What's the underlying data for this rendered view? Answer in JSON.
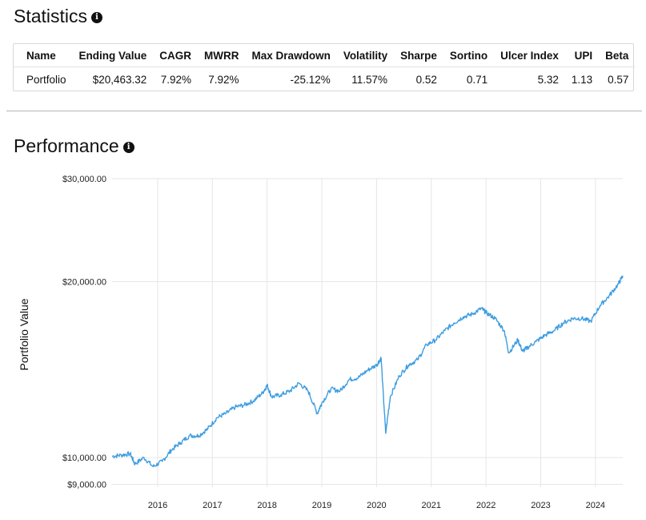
{
  "statistics": {
    "title": "Statistics",
    "info_icon": "info-circle-icon",
    "columns": [
      "Name",
      "Ending Value",
      "CAGR",
      "MWRR",
      "Max Drawdown",
      "Volatility",
      "Sharpe",
      "Sortino",
      "Ulcer Index",
      "UPI",
      "Beta"
    ],
    "rows": [
      [
        "Portfolio",
        "$20,463.32",
        "7.92%",
        "7.92%",
        "-25.12%",
        "11.57%",
        "0.52",
        "0.71",
        "5.32",
        "1.13",
        "0.57"
      ]
    ]
  },
  "performance": {
    "title": "Performance",
    "info_icon": "info-circle-icon"
  },
  "chart_data": {
    "type": "line",
    "title": "",
    "xlabel": "",
    "ylabel": "Portfolio Value",
    "y_scale": "log",
    "ylim": [
      8900,
      30000
    ],
    "y_ticks": [
      9000,
      10000,
      20000,
      30000
    ],
    "y_tick_labels": [
      "$9,000.00",
      "$10,000.00",
      "$20,000.00",
      "$30,000.00"
    ],
    "x_ticks": [
      "2016",
      "2017",
      "2018",
      "2019",
      "2020",
      "2021",
      "2022",
      "2023",
      "2024"
    ],
    "xlim": [
      "2015-03",
      "2024-07"
    ],
    "grid": true,
    "line_color": "#3d9de0",
    "series": [
      {
        "x": [
          "2015-03",
          "2015-05",
          "2015-07",
          "2015-08",
          "2015-10",
          "2015-12",
          "2016-02",
          "2016-04",
          "2016-06",
          "2016-08",
          "2016-10",
          "2016-12",
          "2017-02",
          "2017-04",
          "2017-06",
          "2017-08",
          "2017-10",
          "2017-12",
          "2018-01",
          "2018-02",
          "2018-04",
          "2018-06",
          "2018-08",
          "2018-10",
          "2018-12",
          "2019-01",
          "2019-03",
          "2019-05",
          "2019-07",
          "2019-09",
          "2019-11",
          "2020-01",
          "2020-02",
          "2020-03",
          "2020-04",
          "2020-06",
          "2020-08",
          "2020-10",
          "2020-12",
          "2021-02",
          "2021-04",
          "2021-06",
          "2021-08",
          "2021-10",
          "2021-12",
          "2022-01",
          "2022-03",
          "2022-05",
          "2022-06",
          "2022-08",
          "2022-09",
          "2022-10",
          "2022-12",
          "2023-02",
          "2023-04",
          "2023-06",
          "2023-08",
          "2023-10",
          "2023-12",
          "2024-02",
          "2024-04",
          "2024-06",
          "2024-07"
        ],
        "values": [
          10050,
          10100,
          10150,
          9750,
          10000,
          9650,
          9850,
          10300,
          10600,
          10900,
          10900,
          11200,
          11700,
          11900,
          12200,
          12300,
          12500,
          12900,
          13300,
          12700,
          12800,
          13000,
          13400,
          13000,
          11900,
          12400,
          13100,
          13000,
          13600,
          13700,
          14100,
          14400,
          14800,
          11000,
          12700,
          13800,
          14400,
          14700,
          15600,
          15900,
          16500,
          17000,
          17400,
          17600,
          18000,
          17700,
          17300,
          16500,
          15100,
          15900,
          15200,
          15400,
          15800,
          16200,
          16500,
          17000,
          17300,
          17300,
          17100,
          18200,
          18900,
          19800,
          20463
        ]
      }
    ]
  }
}
